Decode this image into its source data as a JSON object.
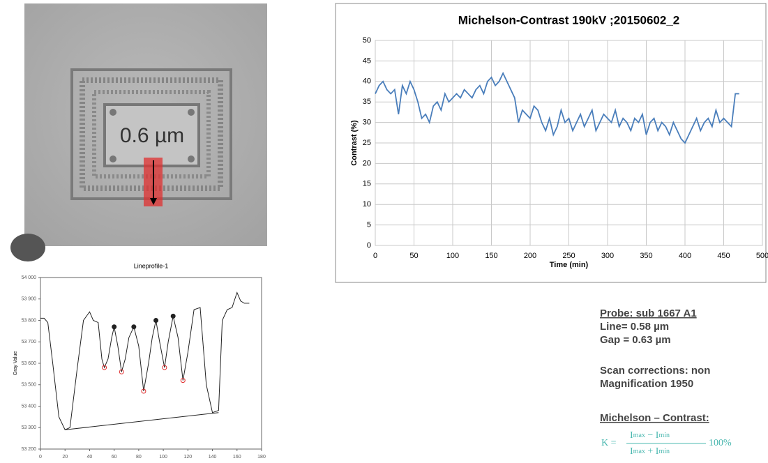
{
  "image": {
    "label": "0.6 µm"
  },
  "chart_data": [
    {
      "type": "line",
      "title": "Lineprofile-1",
      "ylabel": "Gray Value",
      "xlim": [
        0,
        180
      ],
      "xticks": [
        0,
        20,
        40,
        60,
        80,
        100,
        120,
        140,
        160,
        180
      ],
      "ylim": [
        53200,
        54000
      ],
      "yticks": [
        {
          "value": 53200,
          "label": "53 200"
        },
        {
          "value": 53300,
          "label": "53 300"
        },
        {
          "value": 53400,
          "label": "53 400"
        },
        {
          "value": 53500,
          "label": "53 500"
        },
        {
          "value": 53600,
          "label": "53 600"
        },
        {
          "value": 53700,
          "label": "53 700"
        },
        {
          "value": 53800,
          "label": "53 800"
        },
        {
          "value": 53900,
          "label": "53 900"
        },
        {
          "value": 54000,
          "label": "54 000"
        }
      ],
      "grid": false,
      "series": [
        {
          "color": "#222222",
          "x": [
            0,
            3,
            6,
            10,
            15,
            20,
            24,
            30,
            35,
            40,
            43,
            47,
            50,
            52,
            55,
            58,
            60,
            63,
            66,
            69,
            72,
            76,
            80,
            84,
            88,
            91,
            94,
            97,
            101,
            104,
            108,
            112,
            116,
            120,
            125,
            130,
            135,
            140,
            145,
            148,
            152,
            156,
            160,
            163,
            166,
            170
          ],
          "values": [
            53810,
            53810,
            53790,
            53600,
            53350,
            53290,
            53300,
            53580,
            53800,
            53840,
            53800,
            53790,
            53620,
            53580,
            53620,
            53720,
            53770,
            53680,
            53560,
            53620,
            53720,
            53770,
            53680,
            53470,
            53600,
            53720,
            53800,
            53700,
            53580,
            53700,
            53820,
            53720,
            53520,
            53650,
            53850,
            53860,
            53500,
            53370,
            53380,
            53800,
            53850,
            53860,
            53930,
            53890,
            53880,
            53880
          ]
        },
        {
          "color": "#222222",
          "x": [
            20,
            145
          ],
          "values": [
            53290,
            53370
          ]
        },
        {
          "color": "#222222",
          "marker": true,
          "x": [
            60,
            76,
            94,
            108
          ],
          "values": [
            53770,
            53770,
            53800,
            53820
          ]
        },
        {
          "color": "#e03030",
          "marker": true,
          "x": [
            52,
            66,
            84,
            101,
            116
          ],
          "values": [
            53580,
            53560,
            53470,
            53580,
            53520
          ]
        }
      ]
    },
    {
      "type": "line",
      "title": "Michelson-Contrast 190kV ;20150602_2",
      "xlabel": "Time (min)",
      "ylabel": "Contrast (%)",
      "xlim": [
        0,
        500
      ],
      "xticks": [
        0,
        50,
        100,
        150,
        200,
        250,
        300,
        350,
        400,
        450,
        500
      ],
      "ylim": [
        0,
        50
      ],
      "yticks": [
        0,
        5,
        10,
        15,
        20,
        25,
        30,
        35,
        40,
        45,
        50
      ],
      "grid": true,
      "series": [
        {
          "color": "#4a7ebb",
          "x": [
            0,
            5,
            10,
            15,
            20,
            25,
            30,
            35,
            40,
            45,
            50,
            55,
            60,
            65,
            70,
            75,
            80,
            85,
            90,
            95,
            100,
            105,
            110,
            115,
            120,
            125,
            130,
            135,
            140,
            145,
            150,
            155,
            160,
            165,
            170,
            175,
            180,
            185,
            190,
            195,
            200,
            205,
            210,
            215,
            220,
            225,
            230,
            235,
            240,
            245,
            250,
            255,
            260,
            265,
            270,
            275,
            280,
            285,
            290,
            295,
            300,
            305,
            310,
            315,
            320,
            325,
            330,
            335,
            340,
            345,
            350,
            355,
            360,
            365,
            370,
            375,
            380,
            385,
            390,
            395,
            400,
            405,
            410,
            415,
            420,
            425,
            430,
            435,
            440,
            445,
            450,
            455,
            460,
            465,
            470
          ],
          "values": [
            37,
            39,
            40,
            38,
            37,
            38,
            32,
            39,
            37,
            40,
            38,
            35,
            31,
            32,
            30,
            34,
            35,
            33,
            37,
            35,
            36,
            37,
            36,
            38,
            37,
            36,
            38,
            39,
            37,
            40,
            41,
            39,
            40,
            42,
            40,
            38,
            36,
            30,
            33,
            32,
            31,
            34,
            33,
            30,
            28,
            31,
            27,
            29,
            33,
            30,
            31,
            28,
            30,
            32,
            29,
            31,
            33,
            28,
            30,
            32,
            31,
            30,
            33,
            29,
            31,
            30,
            28,
            31,
            30,
            32,
            27,
            30,
            31,
            28,
            30,
            29,
            27,
            30,
            28,
            26,
            25,
            27,
            29,
            31,
            28,
            30,
            31,
            29,
            33,
            30,
            31,
            30,
            29,
            37,
            37
          ]
        }
      ]
    }
  ],
  "notes": {
    "probe": "Probe: sub 1667 A1",
    "line": "Line= 0.58 µm",
    "gap": "Gap = 0.63 µm",
    "scan": "Scan corrections: non",
    "magnification": "Magnification 1950",
    "heading": "Michelson – Contrast:",
    "formula": {
      "lhs": "K =",
      "num": [
        "I",
        "max",
        " − ",
        "I",
        "min"
      ],
      "den": [
        "I",
        "max",
        " + ",
        "I",
        "min"
      ],
      "rhs": "100%"
    }
  }
}
